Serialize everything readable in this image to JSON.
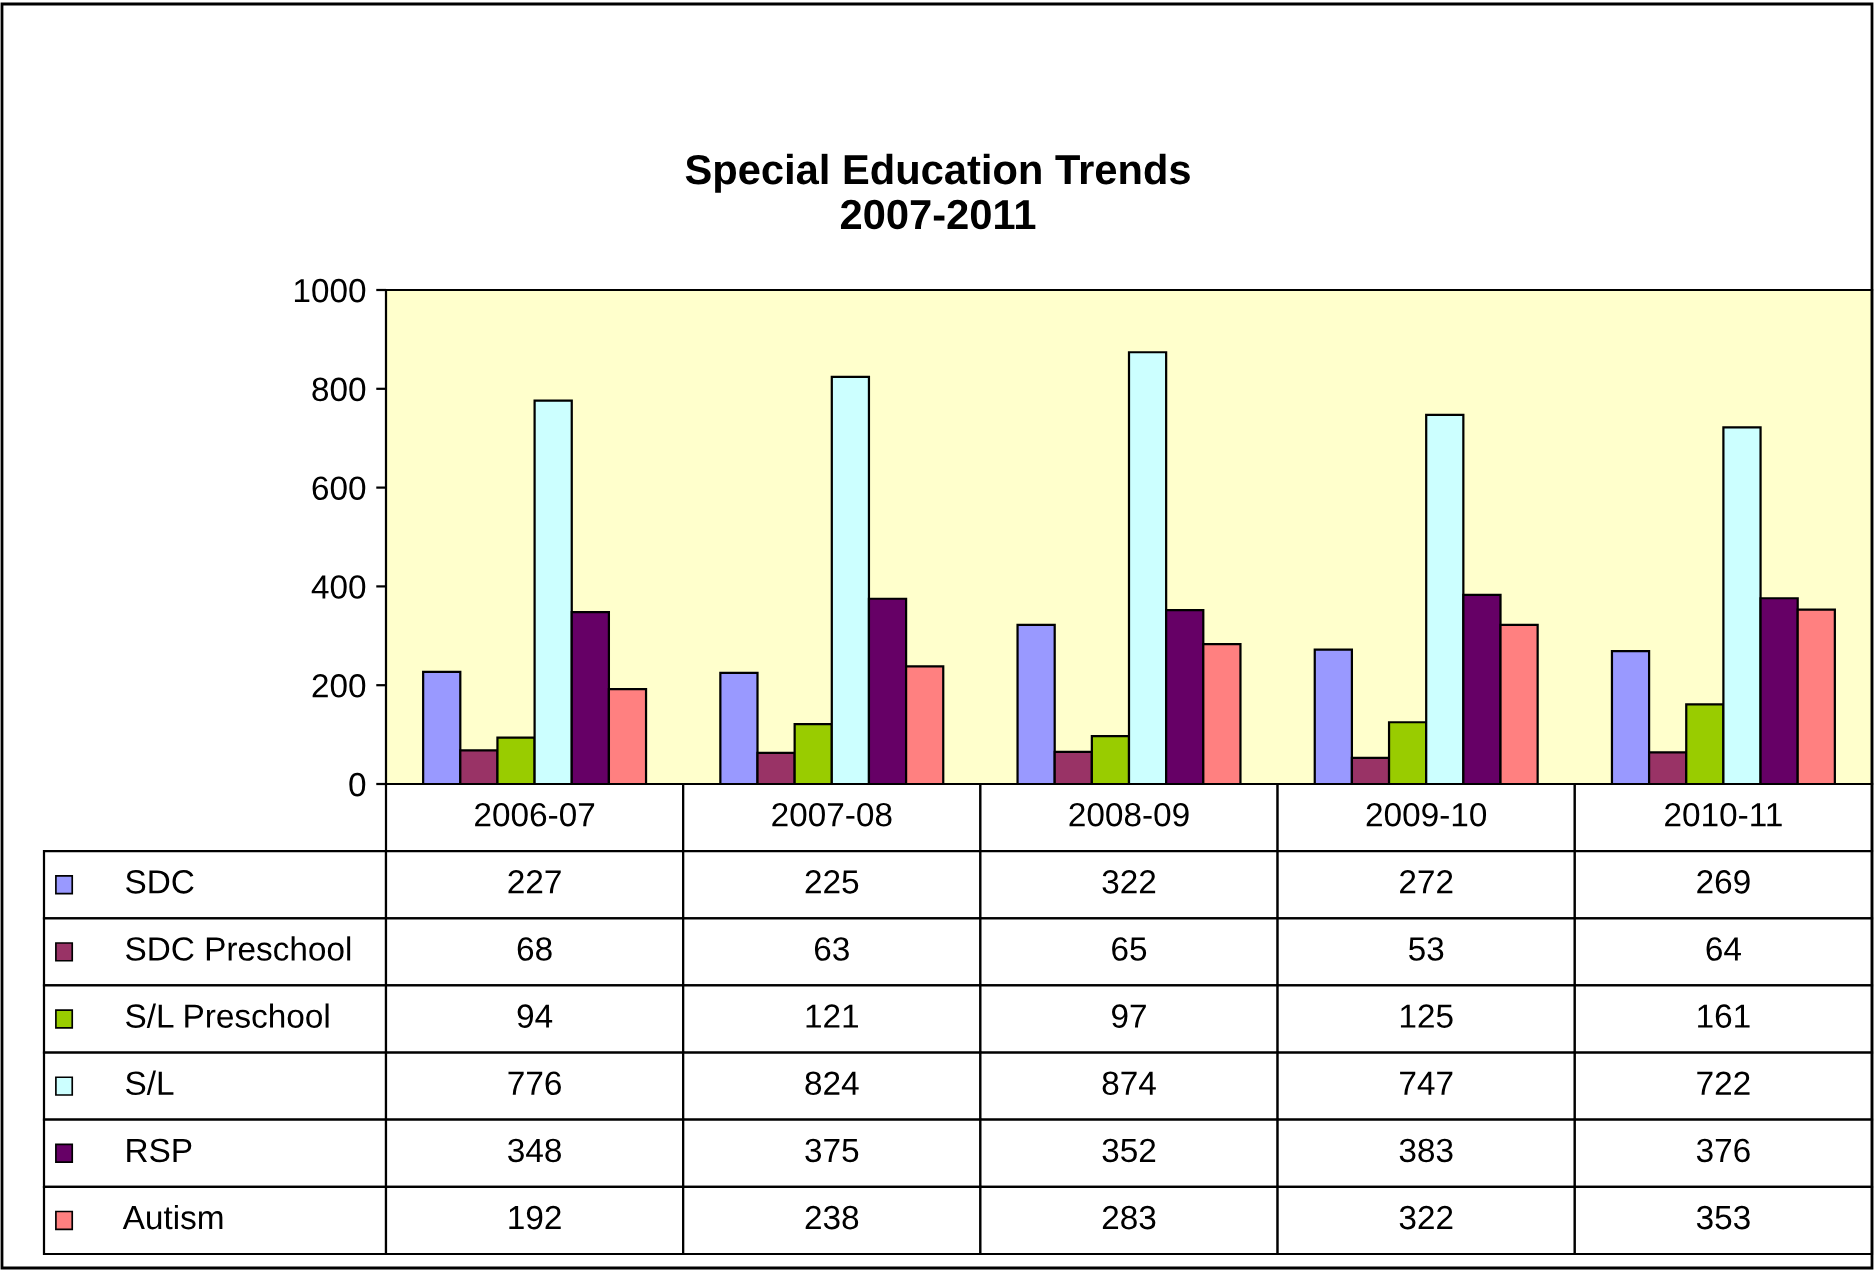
{
  "chart_data": {
    "type": "bar",
    "title": "Special Education Trends\n2007-2011",
    "categories": [
      "2006-07",
      "2007-08",
      "2008-09",
      "2009-10",
      "2010-11"
    ],
    "series": [
      {
        "name": "SDC",
        "color": "#9999ff",
        "values": [
          227,
          225,
          322,
          272,
          269
        ]
      },
      {
        "name": "SDC Preschool",
        "color": "#993366",
        "values": [
          68,
          63,
          65,
          53,
          64
        ]
      },
      {
        "name": "S/L Preschool",
        "color": "#99cc00",
        "values": [
          94,
          121,
          97,
          125,
          161
        ]
      },
      {
        "name": "S/L",
        "color": "#ccffff",
        "values": [
          776,
          824,
          874,
          747,
          722
        ]
      },
      {
        "name": "RSP",
        "color": "#660066",
        "values": [
          348,
          375,
          352,
          383,
          376
        ]
      },
      {
        "name": "Autism",
        "color": "#ff8080",
        "values": [
          192,
          238,
          283,
          322,
          353
        ]
      }
    ],
    "ylim": [
      0,
      1000
    ],
    "yticks": [
      0,
      200,
      400,
      600,
      800,
      1000
    ],
    "data_labels": true,
    "legend": "bottom"
  }
}
